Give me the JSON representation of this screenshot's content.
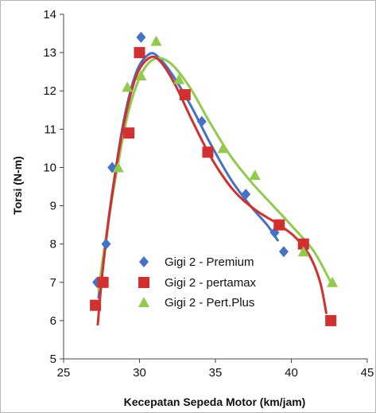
{
  "chart_data": {
    "type": "scatter",
    "title": "",
    "xlabel": "Kecepatan Sepeda Motor (km/jam)",
    "ylabel": "Torsi  (N-m)",
    "xlim": [
      25,
      45
    ],
    "ylim": [
      5,
      14
    ],
    "xticks": [
      25,
      30,
      35,
      40,
      45
    ],
    "yticks": [
      5,
      6,
      7,
      8,
      9,
      10,
      11,
      12,
      13,
      14
    ],
    "grid": false,
    "legend_position": "bottom-center",
    "series": [
      {
        "name": "Gigi 2 - Premium",
        "marker": "diamond",
        "color": "#4472C4",
        "points": [
          [
            27.2,
            7.0
          ],
          [
            27.8,
            8.0
          ],
          [
            28.2,
            10.0
          ],
          [
            30.1,
            13.4
          ],
          [
            34.1,
            11.2
          ],
          [
            37.0,
            9.3
          ],
          [
            38.9,
            8.3
          ],
          [
            39.5,
            7.8
          ]
        ],
        "trend": [
          [
            27.3,
            6.6
          ],
          [
            27.7,
            7.9
          ],
          [
            28.3,
            9.6
          ],
          [
            29.0,
            11.3
          ],
          [
            29.8,
            12.5
          ],
          [
            30.6,
            12.95
          ],
          [
            31.2,
            12.9
          ],
          [
            32.2,
            12.4
          ],
          [
            33.4,
            11.6
          ],
          [
            34.7,
            10.6
          ],
          [
            36.0,
            9.7
          ],
          [
            37.3,
            9.0
          ],
          [
            38.4,
            8.5
          ],
          [
            39.1,
            8.1
          ]
        ]
      },
      {
        "name": "Gigi 2 - pertamax",
        "marker": "square",
        "color": "#D03030",
        "points": [
          [
            27.1,
            6.4
          ],
          [
            27.6,
            7.0
          ],
          [
            29.3,
            10.9
          ],
          [
            30.0,
            13.0
          ],
          [
            33.0,
            11.9
          ],
          [
            34.5,
            10.4
          ],
          [
            39.2,
            8.5
          ],
          [
            40.8,
            8.0
          ],
          [
            42.6,
            6.0
          ]
        ],
        "trend": [
          [
            27.25,
            5.9
          ],
          [
            27.6,
            7.4
          ],
          [
            28.2,
            9.3
          ],
          [
            29.0,
            11.2
          ],
          [
            29.8,
            12.4
          ],
          [
            30.6,
            12.85
          ],
          [
            31.3,
            12.8
          ],
          [
            32.3,
            12.2
          ],
          [
            33.5,
            11.2
          ],
          [
            34.8,
            10.2
          ],
          [
            36.2,
            9.4
          ],
          [
            37.6,
            8.9
          ],
          [
            39.0,
            8.55
          ],
          [
            40.2,
            8.2
          ],
          [
            41.2,
            7.7
          ],
          [
            41.9,
            7.0
          ],
          [
            42.3,
            6.2
          ]
        ]
      },
      {
        "name": "Gigi 2 - Pert.Plus",
        "marker": "triangle",
        "color": "#92C94F",
        "points": [
          [
            28.6,
            10.0
          ],
          [
            29.2,
            12.1
          ],
          [
            30.1,
            12.4
          ],
          [
            31.1,
            13.3
          ],
          [
            32.6,
            12.3
          ],
          [
            35.5,
            10.5
          ],
          [
            37.6,
            9.8
          ],
          [
            40.8,
            7.8
          ],
          [
            42.7,
            7.0
          ]
        ],
        "trend": [
          [
            27.3,
            6.8
          ],
          [
            27.8,
            8.2
          ],
          [
            28.5,
            9.9
          ],
          [
            29.3,
            11.5
          ],
          [
            30.2,
            12.5
          ],
          [
            31.1,
            12.85
          ],
          [
            32.1,
            12.7
          ],
          [
            33.3,
            12.1
          ],
          [
            34.6,
            11.2
          ],
          [
            36.0,
            10.3
          ],
          [
            37.4,
            9.6
          ],
          [
            38.8,
            9.0
          ],
          [
            40.2,
            8.4
          ],
          [
            41.5,
            7.8
          ],
          [
            42.6,
            7.0
          ]
        ]
      }
    ]
  }
}
